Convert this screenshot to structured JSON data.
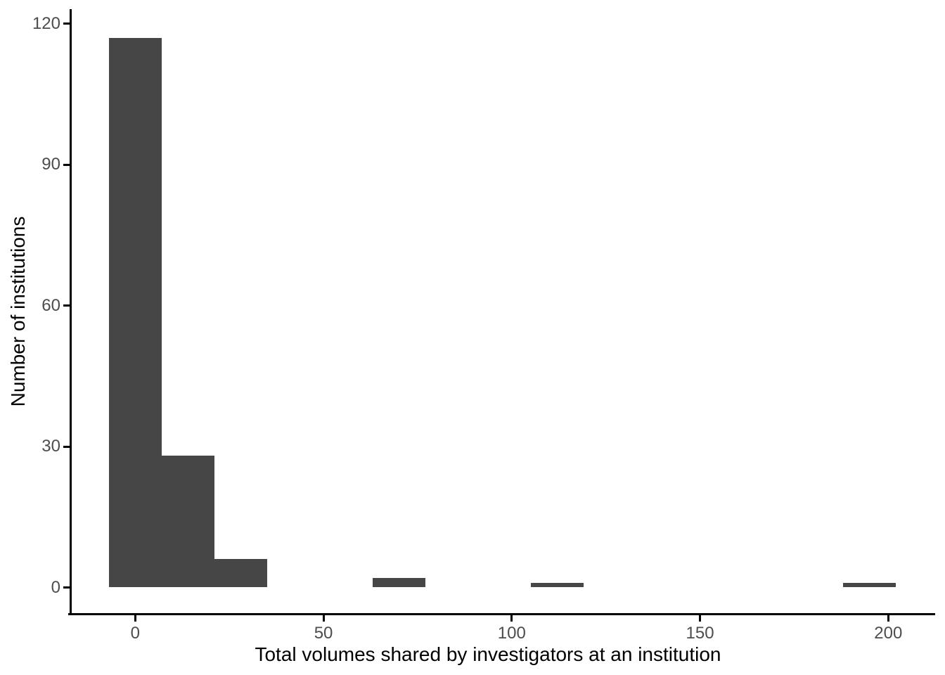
{
  "chart_data": {
    "type": "bar",
    "subtype": "histogram",
    "title": "",
    "xlabel": "Total volumes shared by investigators at an institution",
    "ylabel": "Number of institutions",
    "x_ticks": [
      0,
      50,
      100,
      150,
      200
    ],
    "y_ticks": [
      0,
      30,
      60,
      90,
      120
    ],
    "xlim": [
      -17.5,
      212.5
    ],
    "ylim": [
      -5.6,
      123
    ],
    "binwidth": 14,
    "bins": [
      {
        "center": 0,
        "count": 117
      },
      {
        "center": 14,
        "count": 28
      },
      {
        "center": 28,
        "count": 6
      },
      {
        "center": 70,
        "count": 2
      },
      {
        "center": 112,
        "count": 1
      },
      {
        "center": 195,
        "count": 1
      }
    ],
    "legend": "none",
    "grid": "off",
    "colors": {
      "bar_fill": "#464646",
      "axis_line": "#000000",
      "tick_label": "#4d4d4d",
      "axis_title": "#000000",
      "background": "#ffffff"
    }
  }
}
